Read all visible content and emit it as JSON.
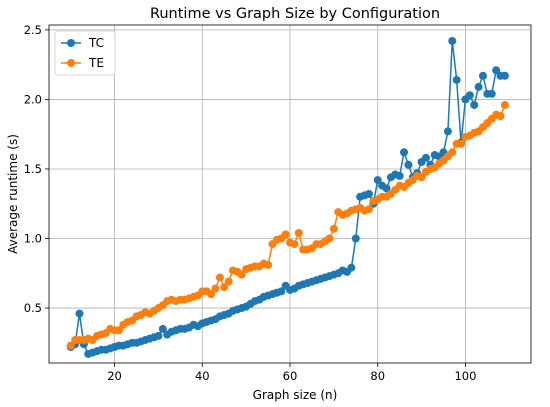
{
  "chart_data": {
    "type": "line",
    "title": "Runtime vs Graph Size by Configuration",
    "xlabel": "Graph size (n)",
    "ylabel": "Average runtime (s)",
    "xlim": [
      5.05,
      114.95
    ],
    "ylim": [
      0.105,
      2.535
    ],
    "xticks": [
      20,
      40,
      60,
      80,
      100
    ],
    "yticks": [
      0.5,
      1.0,
      1.5,
      2.0,
      2.5
    ],
    "xtick_labels": [
      "20",
      "40",
      "60",
      "80",
      "100"
    ],
    "ytick_labels": [
      "0.5",
      "1.0",
      "1.5",
      "2.0",
      "2.5"
    ],
    "grid": true,
    "legend_position": "upper-left",
    "colors": {
      "TC": "#1f77b4",
      "TE": "#ff7f0e"
    },
    "x": [
      10,
      11,
      12,
      13,
      14,
      15,
      16,
      17,
      18,
      19,
      20,
      21,
      22,
      23,
      24,
      25,
      26,
      27,
      28,
      29,
      30,
      31,
      32,
      33,
      34,
      35,
      36,
      37,
      38,
      39,
      40,
      41,
      42,
      43,
      44,
      45,
      46,
      47,
      48,
      49,
      50,
      51,
      52,
      53,
      54,
      55,
      56,
      57,
      58,
      59,
      60,
      61,
      62,
      63,
      64,
      65,
      66,
      67,
      68,
      69,
      70,
      71,
      72,
      73,
      74,
      75,
      76,
      77,
      78,
      79,
      80,
      81,
      82,
      83,
      84,
      85,
      86,
      87,
      88,
      89,
      90,
      91,
      92,
      93,
      94,
      95,
      96,
      97,
      98,
      99,
      100,
      101,
      102,
      103,
      104,
      105,
      106,
      107,
      108,
      109
    ],
    "series": [
      {
        "name": "TC",
        "values": [
          0.22,
          0.24,
          0.46,
          0.24,
          0.17,
          0.18,
          0.19,
          0.2,
          0.2,
          0.21,
          0.22,
          0.23,
          0.23,
          0.24,
          0.25,
          0.25,
          0.26,
          0.27,
          0.28,
          0.29,
          0.3,
          0.35,
          0.31,
          0.33,
          0.34,
          0.35,
          0.35,
          0.36,
          0.38,
          0.37,
          0.39,
          0.4,
          0.41,
          0.42,
          0.44,
          0.45,
          0.46,
          0.48,
          0.49,
          0.5,
          0.51,
          0.53,
          0.55,
          0.56,
          0.58,
          0.59,
          0.6,
          0.61,
          0.62,
          0.66,
          0.63,
          0.64,
          0.66,
          0.67,
          0.68,
          0.69,
          0.7,
          0.71,
          0.72,
          0.73,
          0.74,
          0.75,
          0.77,
          0.76,
          0.79,
          1.0,
          1.3,
          1.31,
          1.32,
          1.25,
          1.42,
          1.38,
          1.36,
          1.44,
          1.46,
          1.45,
          1.62,
          1.53,
          1.44,
          1.47,
          1.55,
          1.58,
          1.53,
          1.6,
          1.59,
          1.62,
          1.77,
          2.42,
          2.14,
          1.69,
          2.0,
          2.03,
          1.96,
          2.09,
          2.17,
          2.04,
          2.04,
          2.21,
          2.17,
          2.17
        ]
      },
      {
        "name": "TE",
        "values": [
          0.23,
          0.27,
          0.27,
          0.27,
          0.28,
          0.27,
          0.3,
          0.31,
          0.32,
          0.35,
          0.34,
          0.34,
          0.38,
          0.4,
          0.41,
          0.44,
          0.45,
          0.47,
          0.46,
          0.48,
          0.5,
          0.52,
          0.55,
          0.56,
          0.55,
          0.56,
          0.56,
          0.57,
          0.58,
          0.59,
          0.62,
          0.62,
          0.6,
          0.64,
          0.72,
          0.65,
          0.69,
          0.77,
          0.76,
          0.74,
          0.78,
          0.79,
          0.8,
          0.8,
          0.82,
          0.81,
          0.96,
          0.99,
          1.0,
          1.03,
          0.97,
          0.96,
          1.04,
          0.92,
          0.92,
          0.93,
          0.96,
          0.96,
          0.98,
          1.0,
          1.07,
          1.19,
          1.17,
          1.18,
          1.2,
          1.21,
          1.22,
          1.2,
          1.21,
          1.27,
          1.28,
          1.3,
          1.3,
          1.32,
          1.35,
          1.38,
          1.37,
          1.4,
          1.42,
          1.45,
          1.44,
          1.48,
          1.5,
          1.51,
          1.54,
          1.56,
          1.59,
          1.62,
          1.68,
          1.68,
          1.73,
          1.74,
          1.76,
          1.77,
          1.8,
          1.83,
          1.86,
          1.89,
          1.88,
          1.96
        ]
      }
    ]
  }
}
